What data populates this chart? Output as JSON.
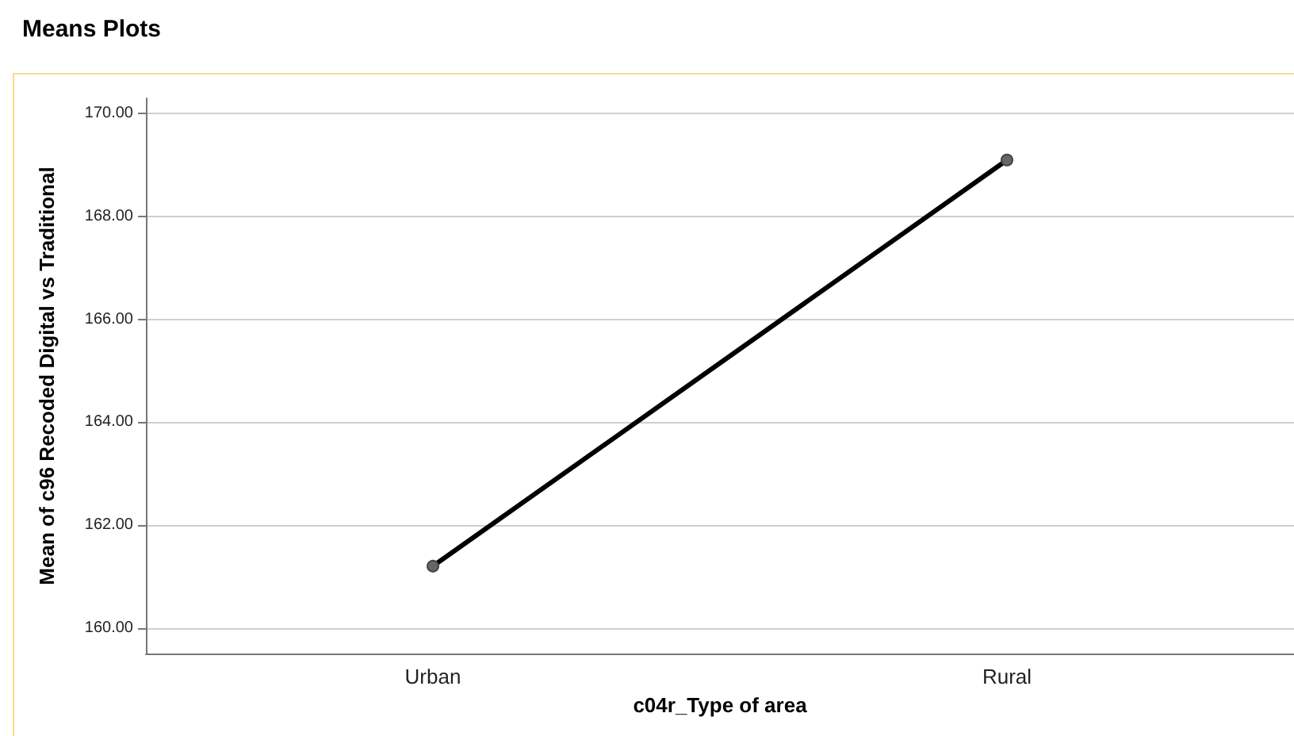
{
  "chart_data": {
    "type": "line",
    "title": "Means Plots",
    "xlabel": "c04r_Type of area",
    "ylabel": "Mean of c96 Recoded Digital vs Traditional",
    "categories": [
      "Urban",
      "Rural"
    ],
    "series": [
      {
        "color": "#000000",
        "values": [
          161.2,
          169.1
        ]
      }
    ],
    "ylim": [
      159.5,
      170.3
    ],
    "yticks": [
      {
        "value": 160,
        "label": "160.00"
      },
      {
        "value": 162,
        "label": "162.00"
      },
      {
        "value": 164,
        "label": "164.00"
      },
      {
        "value": 166,
        "label": "166.00"
      },
      {
        "value": 168,
        "label": "168.00"
      },
      {
        "value": 170,
        "label": "170.00"
      }
    ],
    "grid": "y",
    "marker": "circle",
    "line_style": "solid"
  }
}
